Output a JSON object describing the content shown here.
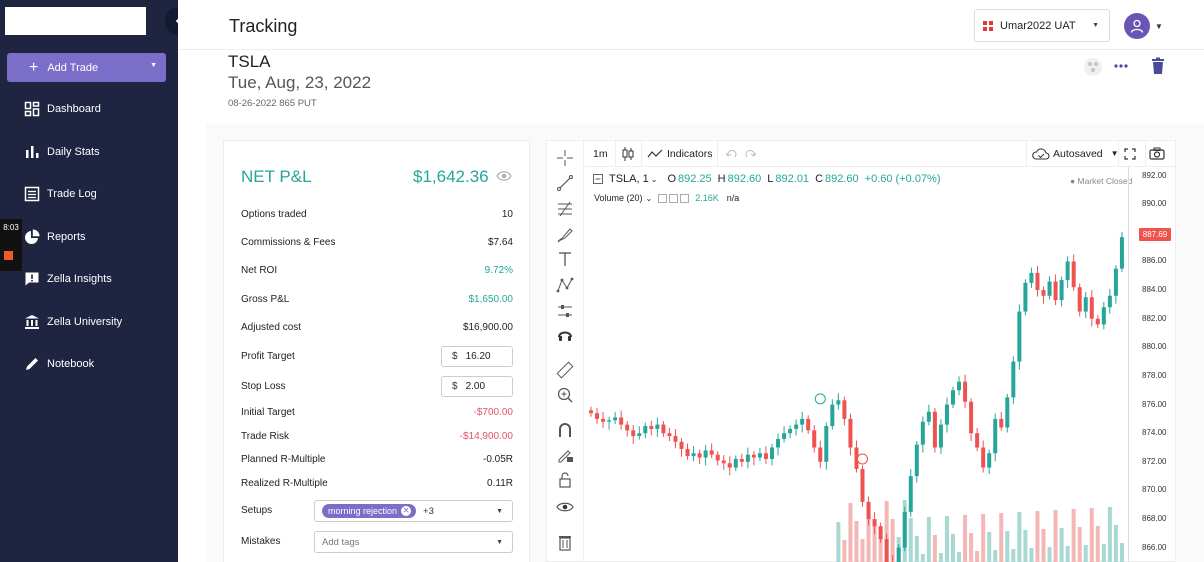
{
  "sidebar": {
    "add_trade_label": "Add Trade",
    "items": [
      {
        "label": "Dashboard",
        "icon": "dashboard-icon"
      },
      {
        "label": "Daily Stats",
        "icon": "bar-chart-icon"
      },
      {
        "label": "Trade Log",
        "icon": "list-icon"
      },
      {
        "label": "Reports",
        "icon": "pie-chart-icon"
      },
      {
        "label": "Zella Insights",
        "icon": "insight-icon"
      },
      {
        "label": "Zella University",
        "icon": "university-icon"
      },
      {
        "label": "Notebook",
        "icon": "pencil-icon"
      }
    ],
    "recording_timer": "8:03"
  },
  "header": {
    "title": "Tracking",
    "account": "Umar2022 UAT"
  },
  "trade": {
    "symbol": "TSLA",
    "date": "Tue, Aug, 23, 2022",
    "contract": "08-26-2022 865 PUT"
  },
  "stats": {
    "net_pnl_label": "NET P&L",
    "net_pnl_value": "$1,642.36",
    "rows": [
      {
        "label": "Options traded",
        "value": "10"
      },
      {
        "label": "Commissions & Fees",
        "value": "$7.64"
      },
      {
        "label": "Net ROI",
        "value": "9.72%"
      },
      {
        "label": "Gross P&L",
        "value": "$1,650.00"
      },
      {
        "label": "Adjusted cost",
        "value": "$16,900.00"
      },
      {
        "label": "Profit Target",
        "value": "16.20"
      },
      {
        "label": "Stop Loss",
        "value": "2.00"
      },
      {
        "label": "Initial Target",
        "value": "-$700.00"
      },
      {
        "label": "Trade Risk",
        "value": "-$14,900.00"
      },
      {
        "label": "Planned R-Multiple",
        "value": "-0.05R"
      },
      {
        "label": "Realized R-Multiple",
        "value": "0.11R"
      },
      {
        "label": "Setups",
        "value": "morning rejection"
      },
      {
        "label": "Mistakes",
        "value": ""
      }
    ],
    "currency_symbol": "$",
    "setups_more": "+3",
    "mistakes_placeholder": "Add tags"
  },
  "chart_toolbar": {
    "interval": "1m",
    "indicators_label": "Indicators",
    "autosaved_label": "Autosaved"
  },
  "chart_legend": {
    "symbol": "TSLA, 1",
    "open_key": "O",
    "open": "892.25",
    "high_key": "H",
    "high": "892.60",
    "low_key": "L",
    "low": "892.01",
    "close_key": "C",
    "close": "892.60",
    "change": "+0.60 (+0.07%)",
    "volume_label": "Volume (20)",
    "volume_value": "2.16K",
    "volume_na": "n/a",
    "market_status": "Market Closed"
  },
  "chart_data": {
    "type": "candlestick",
    "y_ticks": [
      "892.00",
      "890.00",
      "888.00",
      "886.00",
      "884.00",
      "882.00",
      "880.00",
      "878.00",
      "876.00",
      "874.00",
      "872.00",
      "870.00",
      "868.00",
      "866.00"
    ],
    "ylim": [
      865,
      892.6
    ],
    "last_price": "887.69",
    "up_color": "#26a69a",
    "down_color": "#ef5350",
    "closes": [
      875.4,
      875.0,
      874.8,
      874.9,
      875.1,
      874.6,
      874.2,
      873.8,
      874.0,
      874.5,
      874.3,
      874.6,
      874.0,
      873.8,
      873.4,
      872.9,
      872.4,
      872.6,
      872.3,
      872.8,
      872.5,
      872.1,
      871.9,
      871.6,
      872.2,
      872.0,
      872.5,
      872.3,
      872.6,
      872.2,
      873.0,
      873.6,
      874.0,
      874.3,
      874.6,
      875.0,
      874.2,
      873.0,
      872.0,
      874.5,
      876.0,
      876.3,
      875.0,
      873.0,
      871.5,
      869.2,
      868.0,
      867.5,
      866.6,
      865.0,
      864.0,
      866.0,
      868.5,
      871.0,
      873.2,
      874.8,
      875.5,
      873.0,
      874.6,
      876.0,
      877.0,
      877.6,
      876.2,
      874.0,
      873.0,
      871.6,
      872.6,
      875.0,
      874.4,
      876.5,
      879.0,
      882.5,
      884.5,
      885.2,
      884.0,
      883.6,
      884.6,
      883.3,
      884.7,
      886.0,
      884.2,
      882.5,
      883.5,
      882.0,
      881.6,
      882.8,
      883.6,
      885.5,
      887.7
    ]
  }
}
